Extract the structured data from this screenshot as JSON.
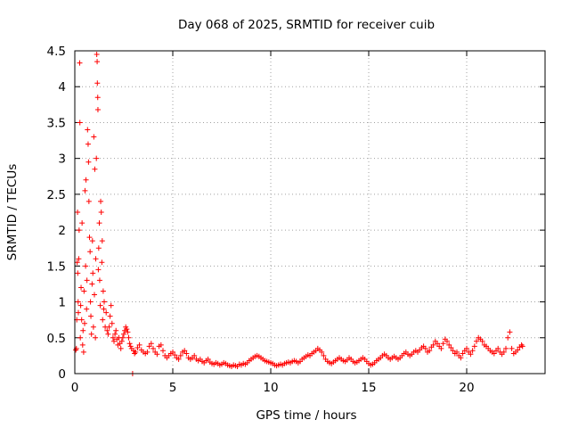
{
  "chart_data": {
    "type": "scatter",
    "title": "Day 068 of 2025, SRMTID for receiver cuib",
    "xlabel": "GPS time / hours",
    "ylabel": "SRMTID / TECUs",
    "xlim": [
      0,
      24
    ],
    "ylim": [
      0,
      4.5
    ],
    "grid": true,
    "xticks": [
      0,
      5,
      10,
      15,
      20
    ],
    "xtick_labels": [
      "0",
      "5",
      "10",
      "15",
      "20"
    ],
    "yticks": [
      0,
      0.5,
      1,
      1.5,
      2,
      2.5,
      3,
      3.5,
      4,
      4.5
    ],
    "ytick_labels": [
      "0",
      "0.5",
      "1",
      "1.5",
      "2",
      "2.5",
      "3",
      "3.5",
      "4",
      "4.5"
    ],
    "marker": "+",
    "series": [
      {
        "name": "SRMTID",
        "color": "#ff0000",
        "points": [
          [
            0.05,
            0.33
          ],
          [
            0.08,
            0.35
          ],
          [
            0.1,
            0.75
          ],
          [
            0.12,
            1.55
          ],
          [
            0.14,
            2.25
          ],
          [
            0.15,
            1.4
          ],
          [
            0.17,
            1.0
          ],
          [
            0.18,
            0.85
          ],
          [
            0.2,
            1.6
          ],
          [
            0.22,
            2.0
          ],
          [
            0.25,
            4.33
          ],
          [
            0.26,
            3.5
          ],
          [
            0.28,
            0.5
          ],
          [
            0.3,
            0.95
          ],
          [
            0.32,
            1.2
          ],
          [
            0.35,
            0.75
          ],
          [
            0.37,
            2.1
          ],
          [
            0.4,
            0.4
          ],
          [
            0.42,
            0.6
          ],
          [
            0.45,
            0.3
          ],
          [
            0.47,
            1.15
          ],
          [
            0.5,
            0.7
          ],
          [
            0.52,
            2.55
          ],
          [
            0.55,
            1.5
          ],
          [
            0.57,
            2.7
          ],
          [
            0.6,
            0.9
          ],
          [
            0.62,
            1.3
          ],
          [
            0.65,
            3.4
          ],
          [
            0.68,
            3.2
          ],
          [
            0.7,
            2.95
          ],
          [
            0.72,
            2.4
          ],
          [
            0.75,
            1.9
          ],
          [
            0.78,
            1.7
          ],
          [
            0.8,
            1.0
          ],
          [
            0.82,
            0.8
          ],
          [
            0.85,
            0.55
          ],
          [
            0.88,
            1.25
          ],
          [
            0.9,
            1.85
          ],
          [
            0.92,
            1.4
          ],
          [
            0.95,
            0.65
          ],
          [
            0.97,
            3.3
          ],
          [
            1.0,
            1.1
          ],
          [
            1.02,
            2.85
          ],
          [
            1.05,
            0.5
          ],
          [
            1.07,
            1.6
          ],
          [
            1.1,
            3.0
          ],
          [
            1.12,
            4.45
          ],
          [
            1.14,
            4.35
          ],
          [
            1.15,
            4.05
          ],
          [
            1.17,
            3.85
          ],
          [
            1.18,
            3.68
          ],
          [
            1.2,
            1.45
          ],
          [
            1.22,
            1.75
          ],
          [
            1.25,
            2.1
          ],
          [
            1.27,
            1.3
          ],
          [
            1.3,
            0.95
          ],
          [
            1.32,
            2.4
          ],
          [
            1.35,
            2.25
          ],
          [
            1.38,
            1.55
          ],
          [
            1.4,
            1.85
          ],
          [
            1.42,
            0.75
          ],
          [
            1.45,
            1.15
          ],
          [
            1.48,
            0.9
          ],
          [
            1.5,
            1.0
          ],
          [
            1.55,
            0.65
          ],
          [
            1.6,
            0.85
          ],
          [
            1.65,
            0.6
          ],
          [
            1.7,
            0.55
          ],
          [
            1.75,
            0.65
          ],
          [
            1.8,
            0.8
          ],
          [
            1.85,
            0.95
          ],
          [
            1.9,
            0.7
          ],
          [
            1.95,
            0.5
          ],
          [
            2.0,
            0.45
          ],
          [
            2.05,
            0.55
          ],
          [
            2.1,
            0.6
          ],
          [
            2.15,
            0.48
          ],
          [
            2.2,
            0.4
          ],
          [
            2.25,
            0.5
          ],
          [
            2.3,
            0.42
          ],
          [
            2.35,
            0.35
          ],
          [
            2.4,
            0.45
          ],
          [
            2.45,
            0.5
          ],
          [
            2.5,
            0.55
          ],
          [
            2.55,
            0.6
          ],
          [
            2.6,
            0.65
          ],
          [
            2.65,
            0.62
          ],
          [
            2.7,
            0.58
          ],
          [
            2.75,
            0.5
          ],
          [
            2.8,
            0.42
          ],
          [
            2.85,
            0.38
          ],
          [
            2.9,
            0.35
          ],
          [
            2.95,
            0.0
          ],
          [
            3.0,
            0.32
          ],
          [
            3.05,
            0.28
          ],
          [
            3.1,
            0.3
          ],
          [
            3.2,
            0.36
          ],
          [
            3.3,
            0.4
          ],
          [
            3.4,
            0.33
          ],
          [
            3.5,
            0.3
          ],
          [
            3.6,
            0.28
          ],
          [
            3.7,
            0.3
          ],
          [
            3.8,
            0.38
          ],
          [
            3.9,
            0.42
          ],
          [
            4.0,
            0.35
          ],
          [
            4.1,
            0.3
          ],
          [
            4.2,
            0.27
          ],
          [
            4.3,
            0.38
          ],
          [
            4.4,
            0.4
          ],
          [
            4.5,
            0.32
          ],
          [
            4.6,
            0.25
          ],
          [
            4.7,
            0.22
          ],
          [
            4.8,
            0.25
          ],
          [
            4.9,
            0.28
          ],
          [
            5.0,
            0.3
          ],
          [
            5.1,
            0.26
          ],
          [
            5.2,
            0.22
          ],
          [
            5.3,
            0.2
          ],
          [
            5.4,
            0.25
          ],
          [
            5.5,
            0.3
          ],
          [
            5.6,
            0.32
          ],
          [
            5.7,
            0.28
          ],
          [
            5.8,
            0.22
          ],
          [
            5.9,
            0.2
          ],
          [
            6.0,
            0.22
          ],
          [
            6.1,
            0.25
          ],
          [
            6.2,
            0.2
          ],
          [
            6.3,
            0.18
          ],
          [
            6.4,
            0.2
          ],
          [
            6.5,
            0.17
          ],
          [
            6.6,
            0.15
          ],
          [
            6.7,
            0.18
          ],
          [
            6.8,
            0.2
          ],
          [
            6.9,
            0.16
          ],
          [
            7.0,
            0.14
          ],
          [
            7.1,
            0.13
          ],
          [
            7.2,
            0.15
          ],
          [
            7.3,
            0.14
          ],
          [
            7.4,
            0.12
          ],
          [
            7.5,
            0.13
          ],
          [
            7.6,
            0.15
          ],
          [
            7.7,
            0.14
          ],
          [
            7.8,
            0.12
          ],
          [
            7.9,
            0.11
          ],
          [
            8.0,
            0.1
          ],
          [
            8.1,
            0.12
          ],
          [
            8.2,
            0.11
          ],
          [
            8.3,
            0.1
          ],
          [
            8.4,
            0.13
          ],
          [
            8.5,
            0.12
          ],
          [
            8.6,
            0.14
          ],
          [
            8.7,
            0.13
          ],
          [
            8.8,
            0.15
          ],
          [
            8.9,
            0.18
          ],
          [
            9.0,
            0.2
          ],
          [
            9.1,
            0.22
          ],
          [
            9.2,
            0.24
          ],
          [
            9.3,
            0.25
          ],
          [
            9.4,
            0.24
          ],
          [
            9.5,
            0.22
          ],
          [
            9.6,
            0.2
          ],
          [
            9.7,
            0.18
          ],
          [
            9.8,
            0.17
          ],
          [
            9.9,
            0.16
          ],
          [
            10.0,
            0.15
          ],
          [
            10.1,
            0.14
          ],
          [
            10.2,
            0.12
          ],
          [
            10.3,
            0.11
          ],
          [
            10.4,
            0.12
          ],
          [
            10.5,
            0.13
          ],
          [
            10.6,
            0.12
          ],
          [
            10.7,
            0.14
          ],
          [
            10.8,
            0.15
          ],
          [
            10.9,
            0.16
          ],
          [
            11.0,
            0.15
          ],
          [
            11.1,
            0.17
          ],
          [
            11.2,
            0.18
          ],
          [
            11.3,
            0.17
          ],
          [
            11.4,
            0.15
          ],
          [
            11.5,
            0.17
          ],
          [
            11.6,
            0.2
          ],
          [
            11.7,
            0.22
          ],
          [
            11.8,
            0.24
          ],
          [
            11.9,
            0.26
          ],
          [
            12.0,
            0.25
          ],
          [
            12.1,
            0.28
          ],
          [
            12.2,
            0.3
          ],
          [
            12.3,
            0.32
          ],
          [
            12.4,
            0.35
          ],
          [
            12.5,
            0.33
          ],
          [
            12.6,
            0.3
          ],
          [
            12.7,
            0.25
          ],
          [
            12.8,
            0.2
          ],
          [
            12.9,
            0.17
          ],
          [
            13.0,
            0.15
          ],
          [
            13.1,
            0.14
          ],
          [
            13.2,
            0.16
          ],
          [
            13.3,
            0.18
          ],
          [
            13.4,
            0.2
          ],
          [
            13.5,
            0.22
          ],
          [
            13.6,
            0.2
          ],
          [
            13.7,
            0.18
          ],
          [
            13.8,
            0.17
          ],
          [
            13.9,
            0.19
          ],
          [
            14.0,
            0.22
          ],
          [
            14.1,
            0.2
          ],
          [
            14.2,
            0.17
          ],
          [
            14.3,
            0.15
          ],
          [
            14.4,
            0.16
          ],
          [
            14.5,
            0.18
          ],
          [
            14.6,
            0.2
          ],
          [
            14.7,
            0.22
          ],
          [
            14.8,
            0.2
          ],
          [
            14.9,
            0.17
          ],
          [
            15.0,
            0.14
          ],
          [
            15.1,
            0.12
          ],
          [
            15.2,
            0.13
          ],
          [
            15.3,
            0.15
          ],
          [
            15.4,
            0.18
          ],
          [
            15.5,
            0.2
          ],
          [
            15.6,
            0.22
          ],
          [
            15.7,
            0.25
          ],
          [
            15.8,
            0.27
          ],
          [
            15.9,
            0.25
          ],
          [
            16.0,
            0.22
          ],
          [
            16.1,
            0.2
          ],
          [
            16.2,
            0.22
          ],
          [
            16.3,
            0.24
          ],
          [
            16.4,
            0.22
          ],
          [
            16.5,
            0.2
          ],
          [
            16.6,
            0.22
          ],
          [
            16.7,
            0.25
          ],
          [
            16.8,
            0.28
          ],
          [
            16.9,
            0.3
          ],
          [
            17.0,
            0.27
          ],
          [
            17.1,
            0.25
          ],
          [
            17.2,
            0.27
          ],
          [
            17.3,
            0.3
          ],
          [
            17.4,
            0.32
          ],
          [
            17.5,
            0.3
          ],
          [
            17.6,
            0.33
          ],
          [
            17.7,
            0.36
          ],
          [
            17.8,
            0.38
          ],
          [
            17.9,
            0.35
          ],
          [
            18.0,
            0.3
          ],
          [
            18.1,
            0.32
          ],
          [
            18.2,
            0.37
          ],
          [
            18.3,
            0.4
          ],
          [
            18.4,
            0.45
          ],
          [
            18.5,
            0.42
          ],
          [
            18.6,
            0.38
          ],
          [
            18.7,
            0.35
          ],
          [
            18.8,
            0.42
          ],
          [
            18.9,
            0.48
          ],
          [
            19.0,
            0.45
          ],
          [
            19.1,
            0.4
          ],
          [
            19.2,
            0.36
          ],
          [
            19.3,
            0.32
          ],
          [
            19.4,
            0.28
          ],
          [
            19.5,
            0.3
          ],
          [
            19.6,
            0.25
          ],
          [
            19.7,
            0.22
          ],
          [
            19.8,
            0.28
          ],
          [
            19.9,
            0.32
          ],
          [
            20.0,
            0.35
          ],
          [
            20.1,
            0.3
          ],
          [
            20.2,
            0.27
          ],
          [
            20.3,
            0.32
          ],
          [
            20.4,
            0.38
          ],
          [
            20.5,
            0.45
          ],
          [
            20.6,
            0.5
          ],
          [
            20.7,
            0.48
          ],
          [
            20.8,
            0.45
          ],
          [
            20.9,
            0.4
          ],
          [
            21.0,
            0.38
          ],
          [
            21.1,
            0.35
          ],
          [
            21.2,
            0.32
          ],
          [
            21.3,
            0.3
          ],
          [
            21.4,
            0.28
          ],
          [
            21.5,
            0.32
          ],
          [
            21.6,
            0.35
          ],
          [
            21.7,
            0.3
          ],
          [
            21.8,
            0.27
          ],
          [
            21.9,
            0.3
          ],
          [
            22.0,
            0.35
          ],
          [
            22.1,
            0.5
          ],
          [
            22.2,
            0.58
          ],
          [
            22.3,
            0.35
          ],
          [
            22.4,
            0.28
          ],
          [
            22.5,
            0.3
          ],
          [
            22.6,
            0.33
          ],
          [
            22.7,
            0.37
          ],
          [
            22.8,
            0.4
          ],
          [
            22.85,
            0.38
          ]
        ]
      }
    ]
  }
}
